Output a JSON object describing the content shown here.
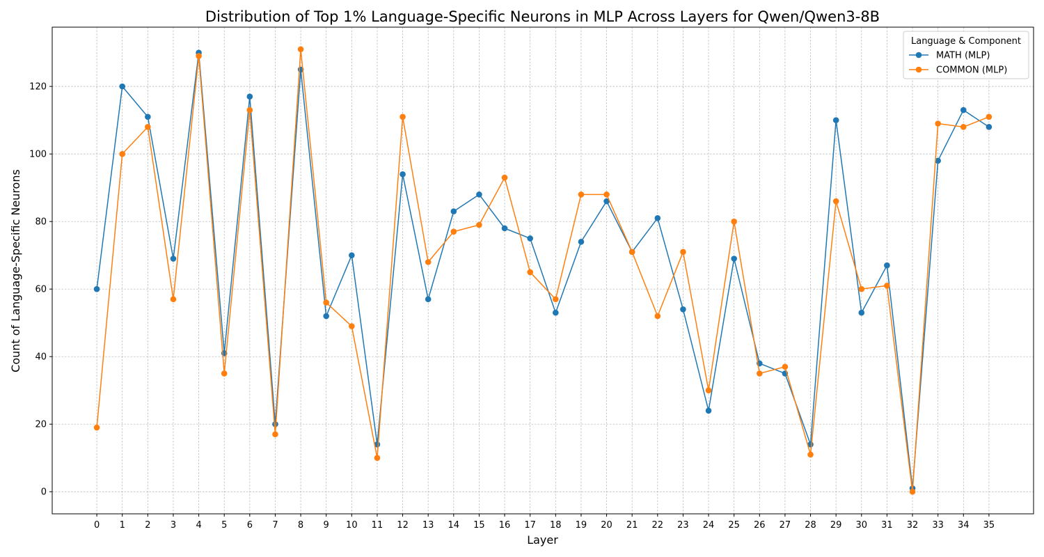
{
  "chart_data": {
    "type": "line",
    "title": "Distribution of Top 1% Language-Specific Neurons in MLP Across Layers for Qwen/Qwen3-8B",
    "xlabel": "Layer",
    "ylabel": "Count of Language-Specific Neurons",
    "x": [
      0,
      1,
      2,
      3,
      4,
      5,
      6,
      7,
      8,
      9,
      10,
      11,
      12,
      13,
      14,
      15,
      16,
      17,
      18,
      19,
      20,
      21,
      22,
      23,
      24,
      25,
      26,
      27,
      28,
      29,
      30,
      31,
      32,
      33,
      34,
      35
    ],
    "xlim": [
      -1.75,
      36.75
    ],
    "ylim": [
      -6.55,
      137.55
    ],
    "yticks": [
      0,
      20,
      40,
      60,
      80,
      100,
      120
    ],
    "grid": true,
    "legend": {
      "title": "Language & Component",
      "location": "top-right"
    },
    "series": [
      {
        "name": "MATH (MLP)",
        "color": "#1f77b4",
        "values": [
          60,
          120,
          111,
          69,
          130,
          41,
          117,
          20,
          125,
          52,
          70,
          14,
          94,
          57,
          83,
          88,
          78,
          75,
          53,
          74,
          86,
          71,
          81,
          54,
          24,
          69,
          38,
          35,
          14,
          110,
          53,
          67,
          1,
          98,
          113,
          108
        ]
      },
      {
        "name": "COMMON (MLP)",
        "color": "#ff7f0e",
        "values": [
          19,
          100,
          108,
          57,
          129,
          35,
          113,
          17,
          131,
          56,
          49,
          10,
          111,
          68,
          77,
          79,
          93,
          65,
          57,
          88,
          88,
          71,
          52,
          71,
          30,
          80,
          35,
          37,
          11,
          86,
          60,
          61,
          0,
          109,
          108,
          111
        ]
      }
    ]
  }
}
